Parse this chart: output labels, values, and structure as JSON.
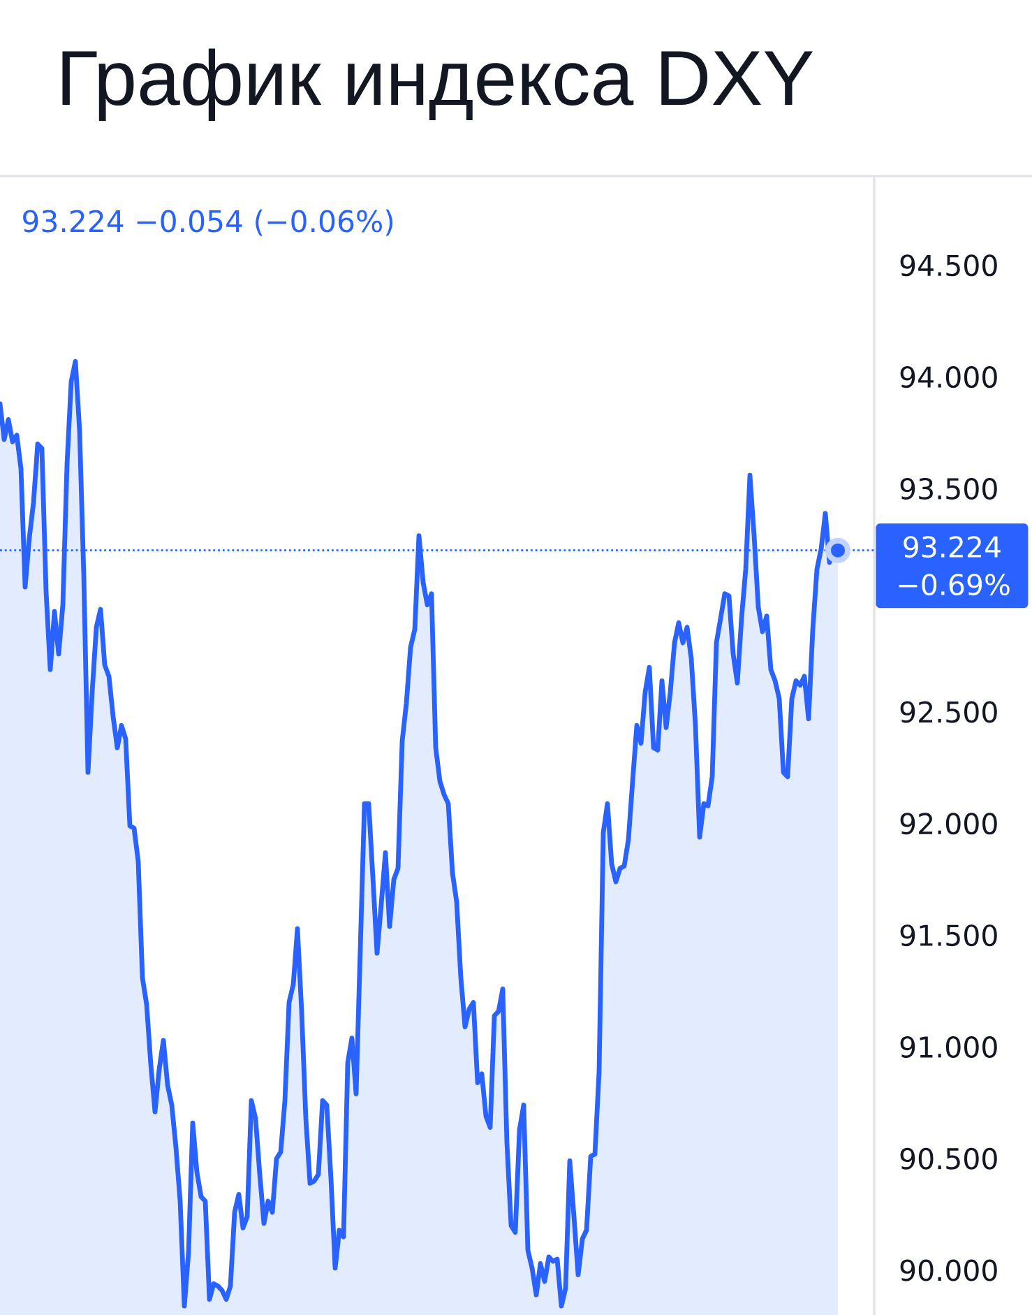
{
  "chart_data": {
    "type": "area",
    "title": "График индекса DXY",
    "annotations": [
      "93.224 −0.054 (−0.06%)"
    ],
    "categories": [
      null,
      null,
      null,
      null,
      null,
      null,
      null,
      null,
      null,
      null,
      null,
      null,
      null,
      null,
      null,
      null,
      null,
      null,
      null,
      null,
      null,
      null,
      null,
      null,
      null,
      null,
      null,
      null,
      null,
      null,
      null,
      null,
      null,
      null,
      null,
      null,
      null,
      null,
      null,
      null,
      null,
      null,
      null,
      null,
      null,
      null,
      null,
      null,
      null,
      null,
      null,
      null,
      null,
      null,
      null,
      null,
      null,
      null,
      null,
      null,
      null,
      null,
      null,
      null,
      null,
      null,
      null,
      null,
      null,
      null,
      null,
      null,
      null,
      null,
      null,
      null,
      null,
      null,
      null,
      null,
      null,
      null,
      null,
      null,
      null,
      null,
      null,
      null,
      null,
      null,
      null,
      null,
      null,
      null,
      null,
      null,
      null,
      null,
      null,
      null,
      null,
      null,
      null,
      null,
      null,
      null,
      null,
      null,
      null,
      null,
      null,
      null,
      null,
      null,
      null,
      null,
      null,
      null,
      null,
      null,
      null,
      null,
      null,
      null,
      null,
      null,
      null,
      null,
      null,
      null,
      null,
      null,
      null,
      null,
      null,
      null,
      null,
      null,
      null,
      null,
      null,
      null,
      null,
      null,
      null,
      null,
      null,
      null,
      null,
      null,
      null,
      null,
      null,
      null,
      null,
      null,
      null,
      null,
      null,
      null,
      null,
      null,
      null,
      null,
      null,
      null,
      null,
      null,
      null,
      null,
      null,
      null,
      null,
      null,
      null,
      null,
      null,
      null,
      null,
      null,
      null,
      null,
      null,
      null,
      null,
      null,
      null,
      null,
      null,
      null,
      null,
      null,
      null,
      null,
      null,
      null,
      null,
      null,
      null,
      null,
      null
    ],
    "series": [
      {
        "color": "#2962ff",
        "values": [
          93.88,
          93.72,
          93.81,
          93.71,
          93.74,
          93.59,
          93.06,
          93.28,
          93.44,
          93.7,
          93.68,
          93.04,
          92.69,
          92.95,
          92.76,
          92.98,
          93.61,
          93.98,
          94.07,
          93.76,
          93.11,
          92.23,
          92.59,
          92.88,
          92.96,
          92.71,
          92.66,
          92.48,
          92.34,
          92.44,
          92.38,
          91.99,
          91.98,
          91.83,
          91.31,
          91.19,
          90.92,
          90.71,
          90.9,
          91.03,
          90.83,
          90.74,
          90.55,
          90.31,
          89.84,
          90.08,
          90.66,
          90.44,
          90.33,
          90.31,
          89.87,
          89.94,
          89.93,
          89.91,
          89.87,
          89.93,
          90.26,
          90.34,
          90.19,
          90.24,
          90.76,
          90.68,
          90.43,
          90.21,
          90.31,
          90.26,
          90.5,
          90.53,
          90.76,
          91.2,
          91.28,
          91.53,
          91.16,
          90.68,
          90.39,
          90.4,
          90.43,
          90.76,
          90.74,
          90.41,
          90.01,
          90.18,
          90.15,
          90.93,
          91.04,
          90.79,
          91.44,
          92.09,
          92.09,
          91.76,
          91.42,
          91.64,
          91.87,
          91.54,
          91.75,
          91.8,
          92.37,
          92.54,
          92.79,
          92.87,
          93.29,
          93.08,
          92.98,
          93.03,
          92.34,
          92.19,
          92.13,
          92.09,
          91.78,
          91.65,
          91.31,
          91.09,
          91.17,
          91.2,
          90.84,
          90.88,
          90.69,
          90.64,
          91.14,
          91.16,
          91.26,
          90.57,
          90.2,
          90.17,
          90.63,
          90.74,
          90.09,
          90.01,
          89.89,
          90.03,
          89.95,
          90.06,
          90.04,
          90.05,
          89.84,
          89.92,
          90.49,
          90.24,
          89.98,
          90.14,
          90.18,
          90.51,
          90.52,
          90.89,
          91.96,
          92.09,
          91.82,
          91.74,
          91.8,
          91.81,
          91.93,
          92.19,
          92.44,
          92.36,
          92.59,
          92.7,
          92.34,
          92.33,
          92.64,
          92.43,
          92.59,
          92.81,
          92.9,
          92.81,
          92.88,
          92.74,
          92.44,
          91.94,
          92.09,
          92.08,
          92.21,
          92.81,
          92.92,
          93.03,
          93.02,
          92.76,
          92.63,
          92.92,
          93.14,
          93.56,
          93.29,
          92.97,
          92.86,
          92.93,
          92.69,
          92.64,
          92.56,
          92.23,
          92.21,
          92.56,
          92.64,
          92.62,
          92.66,
          92.47,
          92.87,
          93.14,
          93.23,
          93.39,
          93.17,
          93.23,
          93.224
        ]
      },
      {
        "type": "scatter",
        "marker": "circle",
        "color": "#2962ff",
        "values": [
          null,
          null,
          null,
          null,
          null,
          null,
          null,
          null,
          null,
          null,
          null,
          null,
          null,
          null,
          null,
          null,
          null,
          null,
          null,
          null,
          null,
          null,
          null,
          null,
          null,
          null,
          null,
          null,
          null,
          null,
          null,
          null,
          null,
          null,
          null,
          null,
          null,
          null,
          null,
          null,
          null,
          null,
          null,
          null,
          null,
          null,
          null,
          null,
          null,
          null,
          null,
          null,
          null,
          null,
          null,
          null,
          null,
          null,
          null,
          null,
          null,
          null,
          null,
          null,
          null,
          null,
          null,
          null,
          null,
          null,
          null,
          null,
          null,
          null,
          null,
          null,
          null,
          null,
          null,
          null,
          null,
          null,
          null,
          null,
          null,
          null,
          null,
          null,
          null,
          null,
          null,
          null,
          null,
          null,
          null,
          null,
          null,
          null,
          null,
          null,
          null,
          null,
          null,
          null,
          null,
          null,
          null,
          null,
          null,
          null,
          null,
          null,
          null,
          null,
          null,
          null,
          null,
          null,
          null,
          null,
          null,
          null,
          null,
          null,
          null,
          null,
          null,
          null,
          null,
          null,
          null,
          null,
          null,
          null,
          null,
          null,
          null,
          null,
          null,
          null,
          null,
          null,
          null,
          null,
          null,
          null,
          null,
          null,
          null,
          null,
          null,
          null,
          null,
          null,
          null,
          null,
          null,
          null,
          null,
          null,
          null,
          null,
          null,
          null,
          null,
          null,
          null,
          null,
          null,
          null,
          null,
          null,
          null,
          null,
          null,
          null,
          null,
          null,
          null,
          null,
          null,
          null,
          null,
          null,
          null,
          null,
          null,
          null,
          null,
          null,
          null,
          null,
          null,
          null,
          null,
          null,
          null,
          null,
          null,
          null,
          93.224
        ]
      }
    ],
    "ylim": [
      89.8,
      94.9
    ],
    "yticks": [
      {
        "value": 90,
        "label": "90.000"
      },
      {
        "value": 90.5,
        "label": "90.500"
      },
      {
        "value": 91,
        "label": "91.000"
      },
      {
        "value": 91.5,
        "label": "91.500"
      },
      {
        "value": 92,
        "label": "92.000"
      },
      {
        "value": 92.5,
        "label": "92.500"
      },
      {
        "value": 93.5,
        "label": "93.500"
      },
      {
        "value": 94,
        "label": "94.000"
      },
      {
        "value": 94.5,
        "label": "94.500"
      }
    ],
    "tick_labels": "y",
    "ref_lines": [
      {
        "axis": "y",
        "value": 93.224,
        "label": "93.224 −0.69%",
        "color": "#2962ff",
        "line_style": "dotted"
      }
    ]
  }
}
